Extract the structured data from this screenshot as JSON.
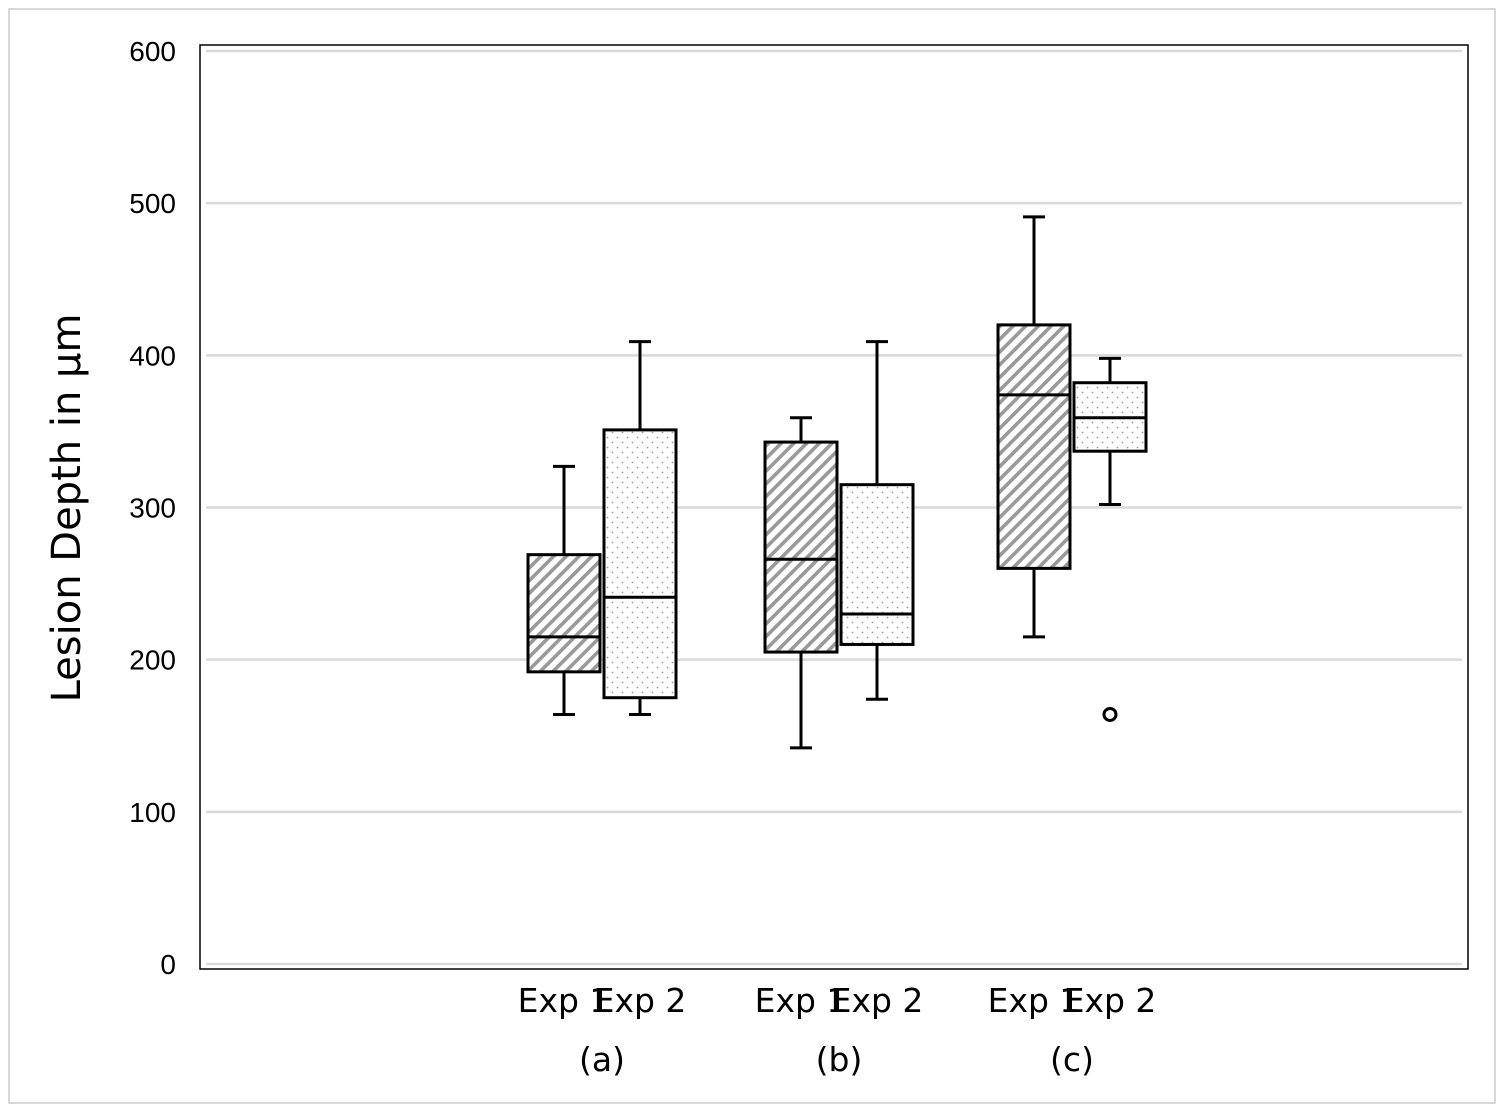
{
  "chart_data": {
    "type": "box",
    "title": "",
    "xlabel": "",
    "ylabel": "Lesion Depth in µm",
    "ylim": [
      0,
      600
    ],
    "yticks": [
      0,
      100,
      200,
      300,
      400,
      500,
      600
    ],
    "grid": true,
    "legend": "none",
    "groups": [
      {
        "label": "(a)",
        "boxes": [
          {
            "label": "Exp 1",
            "pattern": "hatch",
            "min": 164,
            "q1": 192,
            "median": 215,
            "q3": 269,
            "max": 327,
            "outliers": []
          },
          {
            "label": "Exp 2",
            "pattern": "dots",
            "min": 164,
            "q1": 175,
            "median": 241,
            "q3": 351,
            "max": 409,
            "outliers": []
          }
        ]
      },
      {
        "label": "(b)",
        "boxes": [
          {
            "label": "Exp 1",
            "pattern": "hatch",
            "min": 142,
            "q1": 205,
            "median": 266,
            "q3": 343,
            "max": 359,
            "outliers": []
          },
          {
            "label": "Exp 2",
            "pattern": "dots",
            "min": 174,
            "q1": 210,
            "median": 230,
            "q3": 315,
            "max": 409,
            "outliers": []
          }
        ]
      },
      {
        "label": "(c)",
        "boxes": [
          {
            "label": "Exp 1",
            "pattern": "hatch",
            "min": 215,
            "q1": 260,
            "median": 374,
            "q3": 420,
            "max": 491,
            "outliers": []
          },
          {
            "label": "Exp 2",
            "pattern": "dots",
            "min": 302,
            "q1": 337,
            "median": 359,
            "q3": 382,
            "max": 398,
            "outliers": [
              164
            ]
          }
        ]
      }
    ]
  },
  "colors": {
    "box_stroke": "#000000",
    "gridline": "#d9d9d9",
    "plot_border": "#000000",
    "frame_border": "#d9d9d9",
    "hatch_fill": "#999999",
    "dot_fill": "#9a9a9a"
  }
}
